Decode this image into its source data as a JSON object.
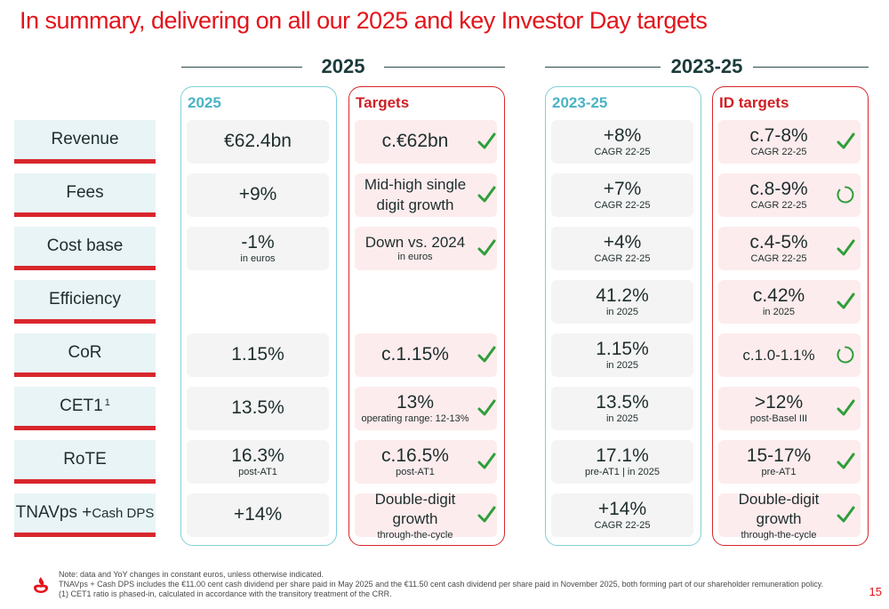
{
  "title": "In summary, delivering on all our 2025 and key Investor Day targets",
  "sections": {
    "left": "2025",
    "right": "2023-25"
  },
  "columns": {
    "actual_2025": "2025",
    "targets_2025": "Targets",
    "actual_2023_25": "2023-25",
    "id_targets": "ID targets"
  },
  "rows": [
    {
      "label": "Revenue",
      "a2025": {
        "main": "€62.4bn",
        "sub": ""
      },
      "t2025": {
        "main": "c.€62bn",
        "sub": "",
        "status": "check"
      },
      "a2325": {
        "main": "+8%",
        "sub": "CAGR 22-25"
      },
      "id": {
        "main": "c.7-8%",
        "sub": "CAGR 22-25",
        "status": "check"
      }
    },
    {
      "label": "Fees",
      "a2025": {
        "main": "+9%",
        "sub": ""
      },
      "t2025": {
        "main": "Mid-high single digit growth",
        "sub": "",
        "status": "check"
      },
      "a2325": {
        "main": "+7%",
        "sub": "CAGR 22-25"
      },
      "id": {
        "main": "c.8-9%",
        "sub": "CAGR 22-25",
        "status": "in-progress"
      }
    },
    {
      "label": "Cost base",
      "a2025": {
        "main": "-1%",
        "sub": "in euros"
      },
      "t2025": {
        "main": "Down vs. 2024",
        "sub": "in euros",
        "status": "check"
      },
      "a2325": {
        "main": "+4%",
        "sub": "CAGR 22-25"
      },
      "id": {
        "main": "c.4-5%",
        "sub": "CAGR 22-25",
        "status": "check"
      }
    },
    {
      "label": "Efficiency",
      "a2025": null,
      "t2025": null,
      "a2325": {
        "main": "41.2%",
        "sub": "in 2025"
      },
      "id": {
        "main": "c.42%",
        "sub": "in 2025",
        "status": "check"
      }
    },
    {
      "label": "CoR",
      "a2025": {
        "main": "1.15%",
        "sub": ""
      },
      "t2025": {
        "main": "c.1.15%",
        "sub": "",
        "status": "check"
      },
      "a2325": {
        "main": "1.15%",
        "sub": "in 2025"
      },
      "id": {
        "main": "c.1.0-1.1%",
        "sub": "",
        "status": "in-progress"
      }
    },
    {
      "label": "CET1",
      "label_sup": "1",
      "a2025": {
        "main": "13.5%",
        "sub": ""
      },
      "t2025": {
        "main": "13%",
        "sub": "operating range: 12-13%",
        "status": "check"
      },
      "a2325": {
        "main": "13.5%",
        "sub": "in 2025"
      },
      "id": {
        "main": ">12%",
        "sub": "post-Basel III",
        "status": "check"
      }
    },
    {
      "label": "RoTE",
      "a2025": {
        "main": "16.3%",
        "sub": "post-AT1"
      },
      "t2025": {
        "main": "c.16.5%",
        "sub": "post-AT1",
        "status": "check"
      },
      "a2325": {
        "main": "17.1%",
        "sub": "pre-AT1 | in 2025"
      },
      "id": {
        "main": "15-17%",
        "sub": "pre-AT1",
        "status": "check"
      }
    },
    {
      "label": "TNAVps + ",
      "label_small": "Cash DPS",
      "a2025": {
        "main": "+14%",
        "sub": ""
      },
      "t2025": {
        "main": "Double-digit growth",
        "sub": "through-the-cycle",
        "status": "check"
      },
      "a2325": {
        "main": "+14%",
        "sub": "CAGR 22-25"
      },
      "id": {
        "main": "Double-digit growth",
        "sub": "through-the-cycle",
        "status": "check"
      }
    }
  ],
  "footnotes": [
    "Note: data and YoY changes in constant euros, unless otherwise indicated.",
    "TNAVps + Cash DPS includes the €11.00 cent cash dividend per share paid in May 2025 and the €11.50 cent cash dividend per share paid in November 2025, both forming part of our shareholder remuneration policy.",
    "(1) CET1 ratio is phased-in, calculated in accordance with the transitory treatment of the CRR."
  ],
  "page_number": "15",
  "colors": {
    "brand_red": "#e3141b",
    "teal": "#4ab3c4",
    "check_green": "#2e9e3a"
  },
  "icons": {
    "achieved": "check-icon",
    "in_progress": "progress-circle-icon",
    "logo": "flame-logo-icon"
  }
}
